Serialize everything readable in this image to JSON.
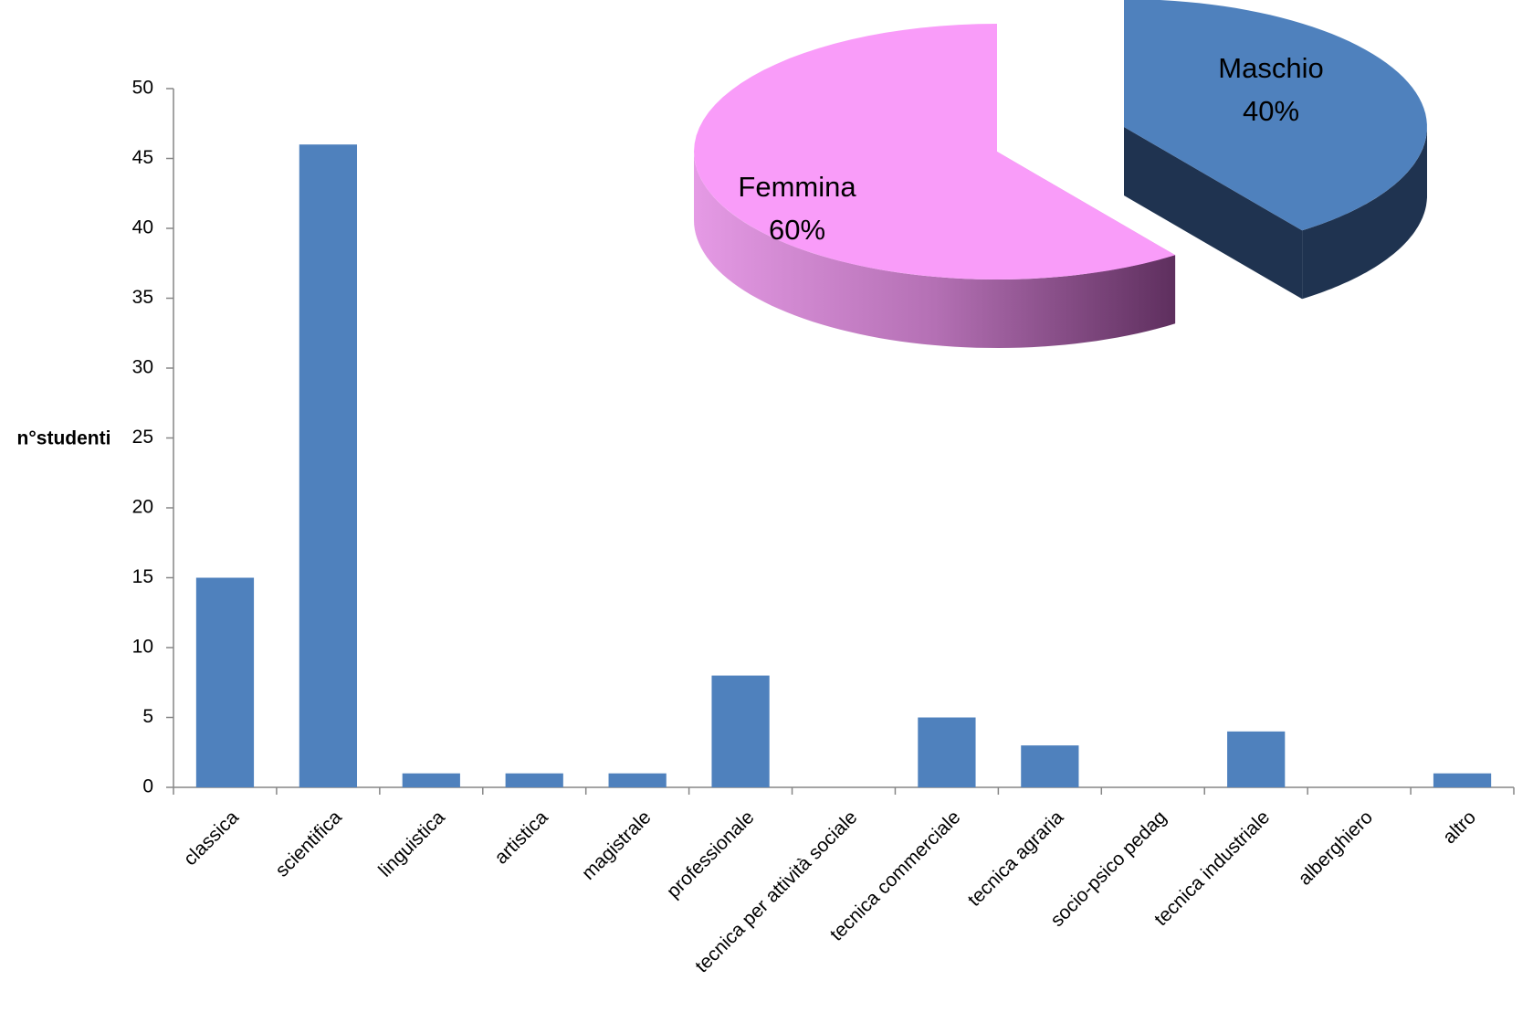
{
  "chart_data": [
    {
      "type": "bar",
      "y_label": "n°studenti",
      "categories": [
        "classica",
        "scientifica",
        "linguistica",
        "artistica",
        "magistrale",
        "professionale",
        "tecnica per attività sociale",
        "tecnica commerciale",
        "tecnica agraria",
        "socio-psico pedag",
        "tecnica industriale",
        "alberghiero",
        "altro"
      ],
      "values": [
        15,
        46,
        1,
        1,
        1,
        8,
        0,
        5,
        3,
        0,
        4,
        0,
        1
      ],
      "color": "#4f81bd",
      "ylim": [
        0,
        50
      ],
      "yticks": [
        0,
        5,
        10,
        15,
        20,
        25,
        30,
        35,
        40,
        45,
        50
      ]
    },
    {
      "type": "pie",
      "categories": [
        "Maschio",
        "Femmina"
      ],
      "values": [
        40,
        60
      ],
      "value_labels": [
        "40%",
        "60%"
      ],
      "colors": [
        "#4f81bd",
        "#f99cf9"
      ]
    }
  ]
}
